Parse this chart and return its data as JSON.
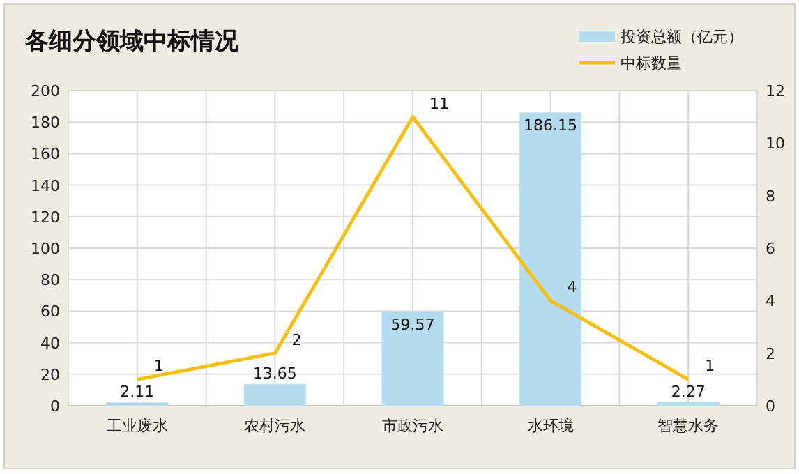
{
  "chart_data": {
    "type": "bar",
    "title": "各细分领域中标情况",
    "categories": [
      "工业废水",
      "农村污水",
      "市政污水",
      "水环境",
      "智慧水务"
    ],
    "series": [
      {
        "name": "投资总额（亿元）",
        "color": "#b4dbee",
        "values": [
          2.11,
          13.65,
          59.57,
          186.15,
          2.27
        ]
      },
      {
        "name": "中标数量",
        "type": "line",
        "axis": "y2",
        "color": "#f5c012",
        "values": [
          1,
          2,
          11,
          4,
          1
        ]
      }
    ],
    "ylim": [
      0,
      200
    ],
    "yticks": [
      0,
      20,
      40,
      60,
      80,
      100,
      120,
      140,
      160,
      180,
      200
    ],
    "y2lim": [
      0,
      12
    ],
    "y2ticks": [
      0,
      2,
      4,
      6,
      8,
      10,
      12
    ],
    "grid": true,
    "legend": "top right",
    "data_labels": true
  }
}
